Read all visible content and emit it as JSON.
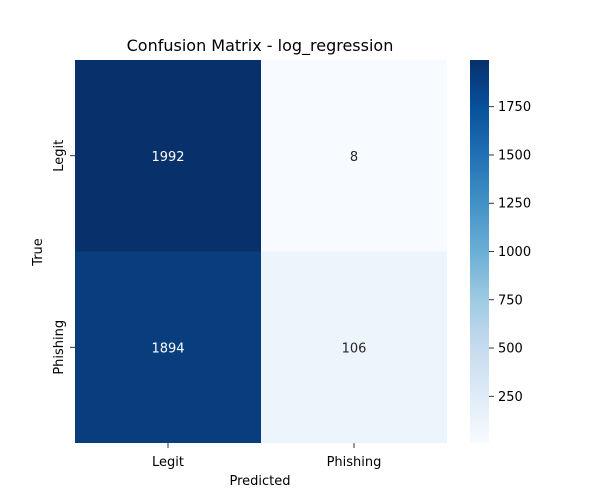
{
  "chart_data": {
    "type": "heatmap",
    "title": "Confusion Matrix - log_regression",
    "xlabel": "Predicted",
    "ylabel": "True",
    "x_categories": [
      "Legit",
      "Phishing"
    ],
    "y_categories": [
      "Legit",
      "Phishing"
    ],
    "values": [
      [
        1992,
        8
      ],
      [
        1894,
        106
      ]
    ],
    "color_scale": {
      "name": "Blues",
      "min": 8,
      "max": 1992,
      "ticks": [
        250,
        500,
        750,
        1000,
        1250,
        1500,
        1750
      ],
      "low_color": "#f7fbff",
      "high_color": "#08306b"
    },
    "annotation_colors": {
      "dark_cell_text": "#ffffff",
      "light_cell_text": "#262626"
    }
  }
}
